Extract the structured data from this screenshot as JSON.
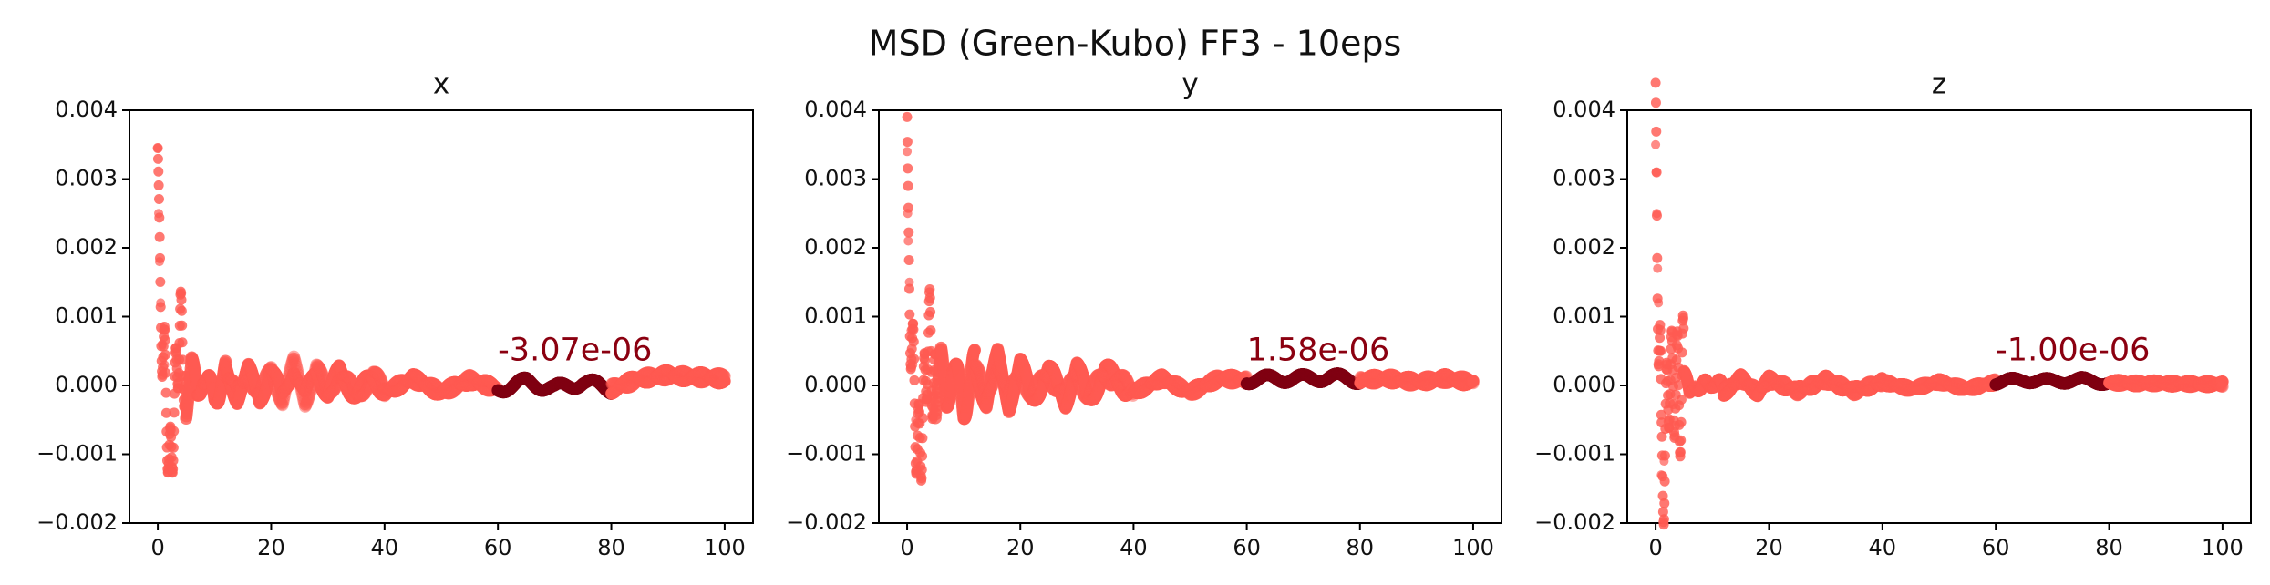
{
  "figure": {
    "title": "MSD (Green-Kubo) FF3 - 10eps"
  },
  "colors": {
    "series_main": "#ff5a52",
    "series_highlight": "#7f0012",
    "annotation_text": "#8b0010",
    "axis": "#000000",
    "background": "#ffffff"
  },
  "chart_data": [
    {
      "type": "scatter",
      "title": "x",
      "xlabel": "",
      "ylabel": "",
      "xlim": [
        -5,
        105
      ],
      "ylim": [
        -0.002,
        0.004
      ],
      "xticks": [
        0,
        20,
        40,
        60,
        80,
        100
      ],
      "yticks": [
        -0.002,
        -0.001,
        0.0,
        0.001,
        0.002,
        0.003,
        0.004
      ],
      "xtick_labels": [
        "0",
        "20",
        "40",
        "60",
        "80",
        "100"
      ],
      "ytick_labels": [
        "−0.002",
        "−0.001",
        "0.000",
        "0.001",
        "0.002",
        "0.003",
        "0.004"
      ],
      "grid": false,
      "legend": "none",
      "annotation": {
        "text": "-3.07e-06",
        "x": 60,
        "y": 0.0005
      },
      "highlight_range": [
        60,
        80
      ],
      "series": [
        {
          "name": "",
          "color": "#ff5a52",
          "x": [
            0.0,
            0.15,
            0.3,
            0.5,
            0.8,
            1.2,
            1.6,
            2.0,
            2.5,
            3.0,
            3.5,
            4.0,
            4.5,
            5.0,
            6.0,
            7.0,
            8.0,
            10.0,
            12.0,
            14.0,
            16.0,
            18.0,
            20.0,
            22.0,
            24.0,
            26.0,
            28.0,
            30.0,
            32.0,
            35.0,
            38.0,
            40.0,
            45.0,
            50.0,
            55.0,
            60.0,
            65.0,
            70.0,
            75.0,
            80.0,
            85.0,
            90.0,
            95.0,
            100.0
          ],
          "y": [
            0.00345,
            0.0025,
            0.0018,
            0.0012,
            0.0006,
            0.0003,
            -0.0004,
            -0.0013,
            -0.0009,
            -0.0002,
            0.0004,
            0.0009,
            0.0004,
            -0.0003,
            0.0003,
            -0.0002,
            0.0002,
            -0.0002,
            0.0002,
            -0.00015,
            0.0002,
            -0.0002,
            0.00025,
            -0.0002,
            0.0003,
            -0.0002,
            0.00025,
            -0.00015,
            0.0002,
            -0.00015,
            0.00015,
            -0.0001,
            0.0001,
            -0.0001,
            8e-05,
            -5e-05,
            5e-05,
            -5e-05,
            5e-05,
            -5e-05,
            0.0001,
            0.00015,
            0.00012,
            0.0001
          ]
        }
      ]
    },
    {
      "type": "scatter",
      "title": "y",
      "xlabel": "",
      "ylabel": "",
      "xlim": [
        -5,
        105
      ],
      "ylim": [
        -0.002,
        0.004
      ],
      "xticks": [
        0,
        20,
        40,
        60,
        80,
        100
      ],
      "yticks": [
        -0.002,
        -0.001,
        0.0,
        0.001,
        0.002,
        0.003,
        0.004
      ],
      "xtick_labels": [
        "0",
        "20",
        "40",
        "60",
        "80",
        "100"
      ],
      "ytick_labels": [
        "−0.002",
        "−0.001",
        "0.000",
        "0.001",
        "0.002",
        "0.003",
        "0.004"
      ],
      "grid": false,
      "legend": "none",
      "annotation": {
        "text": "1.58e-06",
        "x": 60,
        "y": 0.0005
      },
      "highlight_range": [
        60,
        80
      ],
      "series": [
        {
          "name": "",
          "color": "#ff5a52",
          "x": [
            0.0,
            0.1,
            0.2,
            0.4,
            0.7,
            1.0,
            1.5,
            2.0,
            2.5,
            3.0,
            3.5,
            4.0,
            5.0,
            6.0,
            7.0,
            8.0,
            10.0,
            12.0,
            14.0,
            16.0,
            18.0,
            20.0,
            22.0,
            25.0,
            28.0,
            30.0,
            32.0,
            35.0,
            40.0,
            45.0,
            50.0,
            55.0,
            60.0,
            65.0,
            70.0,
            75.0,
            80.0,
            85.0,
            90.0,
            95.0,
            100.0
          ],
          "y": [
            0.0034,
            0.0025,
            0.0021,
            0.0015,
            0.0008,
            0.0003,
            -0.0005,
            -0.001,
            -0.0007,
            -0.0003,
            0.0005,
            0.0007,
            -0.0003,
            0.0003,
            -0.0002,
            0.0003,
            -0.0003,
            0.0003,
            -0.00025,
            0.0004,
            -0.00025,
            0.0003,
            -0.0002,
            0.0002,
            -0.0002,
            0.00025,
            -0.0002,
            0.0002,
            -0.0001,
            0.0001,
            -0.0001,
            0.0001,
            8e-05,
            0.0001,
            0.0001,
            0.00012,
            8e-05,
            0.0001,
            5e-05,
            0.0001,
            5e-05
          ]
        }
      ]
    },
    {
      "type": "scatter",
      "title": "z",
      "xlabel": "",
      "ylabel": "",
      "xlim": [
        -5,
        105
      ],
      "ylim": [
        -0.002,
        0.004
      ],
      "xticks": [
        0,
        20,
        40,
        60,
        80,
        100
      ],
      "yticks": [
        -0.002,
        -0.001,
        0.0,
        0.001,
        0.002,
        0.003,
        0.004
      ],
      "xtick_labels": [
        "0",
        "20",
        "40",
        "60",
        "80",
        "100"
      ],
      "ytick_labels": [
        "−0.002",
        "−0.001",
        "0.000",
        "0.001",
        "0.002",
        "0.003",
        "0.004"
      ],
      "grid": false,
      "legend": "none",
      "annotation": {
        "text": "-1.00e-06",
        "x": 60,
        "y": 0.0005
      },
      "highlight_range": [
        60,
        80
      ],
      "series": [
        {
          "name": "",
          "color": "#ff5a52",
          "x": [
            0.0,
            0.1,
            0.2,
            0.35,
            0.5,
            0.8,
            1.0,
            1.5,
            2.0,
            2.5,
            3.0,
            3.5,
            4.0,
            5.0,
            6.0,
            7.0,
            8.0,
            10.0,
            12.0,
            15.0,
            18.0,
            20.0,
            25.0,
            30.0,
            35.0,
            40.0,
            45.0,
            50.0,
            55.0,
            60.0,
            65.0,
            70.0,
            75.0,
            80.0,
            85.0,
            90.0,
            95.0,
            100.0
          ],
          "y": [
            0.0035,
            0.0031,
            0.0025,
            0.0017,
            0.0012,
            0.0005,
            -0.0013,
            -0.0011,
            -0.0005,
            0.0005,
            -0.0003,
            0.0003,
            -0.0003,
            0.0002,
            -0.0002,
            0.0001,
            -0.0001,
            0.0001,
            -0.0001,
            0.0001,
            -0.0001,
            8e-05,
            -8e-05,
            8e-05,
            -8e-05,
            5e-05,
            -5e-05,
            5e-05,
            -5e-05,
            5e-05,
            8e-05,
            6e-05,
            8e-05,
            4e-05,
            3e-05,
            3e-05,
            2e-05,
            2e-05
          ]
        }
      ]
    }
  ]
}
